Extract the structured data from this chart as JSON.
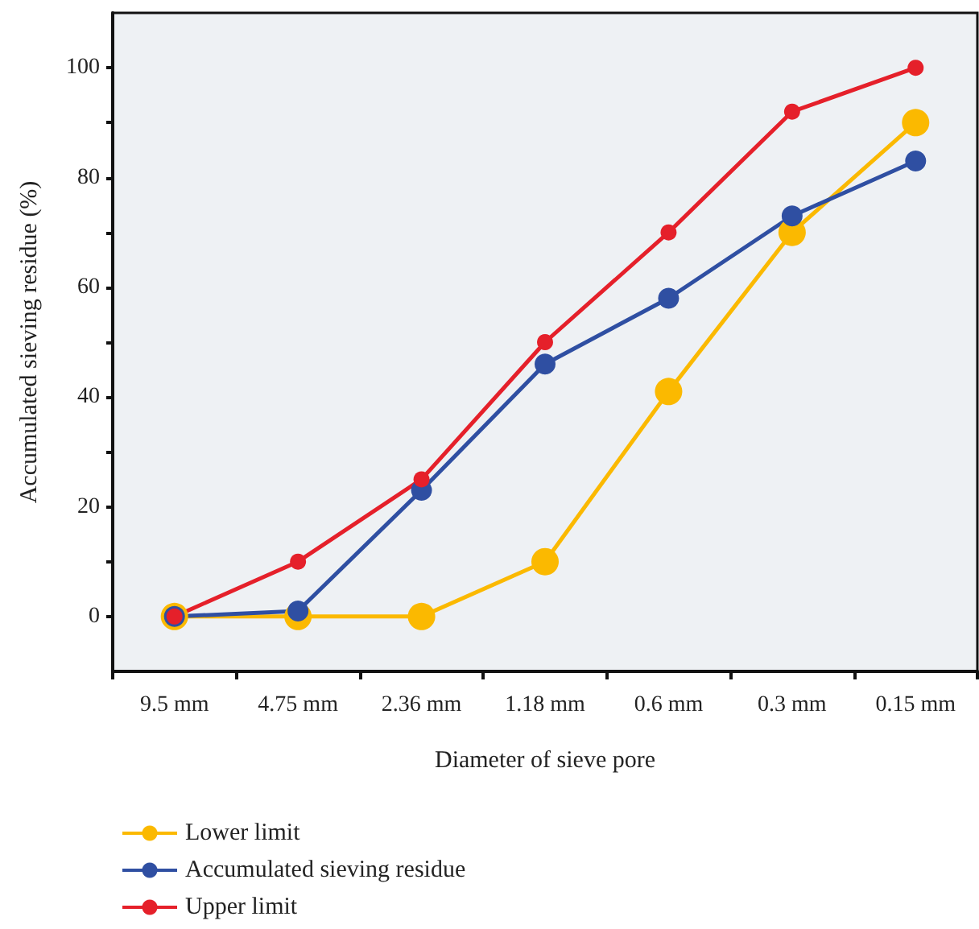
{
  "chart_data": {
    "type": "line",
    "xlabel": "Diameter of sieve pore",
    "ylabel": "Accumulated sieving residue (%)",
    "categories": [
      "9.5 mm",
      "4.75 mm",
      "2.36 mm",
      "1.18 mm",
      "0.6 mm",
      "0.3 mm",
      "0.15 mm"
    ],
    "series": [
      {
        "name": "Lower limit",
        "color": "#fbb900",
        "values": [
          0,
          0,
          0,
          10,
          41,
          70,
          90
        ]
      },
      {
        "name": "Accumulated sieving residue",
        "color": "#2f4fa2",
        "values": [
          0,
          1,
          23,
          46,
          58,
          73,
          83
        ]
      },
      {
        "name": "Upper limit",
        "color": "#e5202a",
        "values": [
          0,
          10,
          25,
          50,
          70,
          92,
          100
        ]
      }
    ],
    "ylim": [
      -10,
      110
    ],
    "yticks": [
      0,
      {
        "value": 10,
        "label": null
      },
      20,
      {
        "value": 30,
        "label": null
      },
      40,
      {
        "value": 50,
        "label": null
      },
      60,
      {
        "value": 70,
        "label": null
      },
      80,
      {
        "value": 90,
        "label": null
      },
      100
    ],
    "grid": false,
    "legend": "bottom left",
    "marker": "circle",
    "line_style": "solid"
  }
}
